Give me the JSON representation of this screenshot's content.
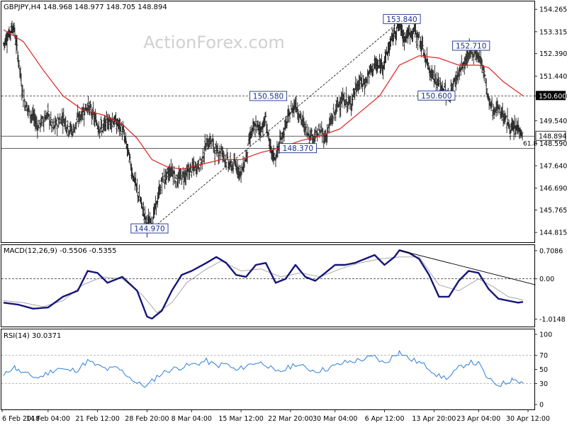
{
  "chart_data": [
    {
      "type": "candlestick",
      "panel": "price",
      "title": "GBPJPY,H4  148.968 148.977 148.705 148.894",
      "watermark": "ActionForex.com",
      "ylim": [
        144.4,
        154.6
      ],
      "y_ticks": [
        "154.265",
        "153.315",
        "152.390",
        "151.440",
        "150.600",
        "149.540",
        "148.590",
        "147.640",
        "146.690",
        "145.765",
        "144.815"
      ],
      "last_price": "148.894",
      "resistance_label": "150.600",
      "fib_label": "61.8",
      "annotations": [
        {
          "label": "153.840",
          "x": 80.5,
          "y": 153.84
        },
        {
          "label": "152.710",
          "x": 94.5,
          "y": 152.71
        },
        {
          "label": "150.580",
          "x": 53.5,
          "y": 150.58
        },
        {
          "label": "150.600",
          "x": 87.5,
          "y": 150.6
        },
        {
          "label": "148.370",
          "x": 59.5,
          "y": 148.37
        },
        {
          "label": "144.970",
          "x": 29.5,
          "y": 144.97
        }
      ],
      "horizontal_lines": [
        {
          "y": 150.6,
          "style": "dashed"
        },
        {
          "y": 148.894,
          "style": "solid"
        },
        {
          "y": 148.37,
          "style": "solid"
        }
      ],
      "trendline": {
        "x0": 30,
        "y0": 144.97,
        "x1": 80.5,
        "y1": 153.84
      },
      "close_path": [
        [
          0,
          152.8
        ],
        [
          1,
          153.2
        ],
        [
          2,
          153.6
        ],
        [
          3,
          152.2
        ],
        [
          4,
          150.5
        ],
        [
          5,
          150.0
        ],
        [
          6,
          149.7
        ],
        [
          7,
          149.3
        ],
        [
          8,
          149.6
        ],
        [
          9,
          149.8
        ],
        [
          10,
          149.2
        ],
        [
          11,
          149.5
        ],
        [
          12,
          149.7
        ],
        [
          13,
          149.3
        ],
        [
          14,
          149.1
        ],
        [
          15,
          149.6
        ],
        [
          16,
          149.9
        ],
        [
          17,
          150.2
        ],
        [
          18,
          149.8
        ],
        [
          19,
          149.4
        ],
        [
          20,
          149.2
        ],
        [
          21,
          149.5
        ],
        [
          22,
          149.6
        ],
        [
          23,
          149.4
        ],
        [
          24,
          149.2
        ],
        [
          25,
          148.4
        ],
        [
          26,
          147.4
        ],
        [
          27,
          146.6
        ],
        [
          28,
          145.9
        ],
        [
          29,
          145.2
        ],
        [
          30,
          145.3
        ],
        [
          31,
          146.1
        ],
        [
          32,
          147.0
        ],
        [
          33,
          147.2
        ],
        [
          34,
          147.5
        ],
        [
          35,
          147.0
        ],
        [
          36,
          147.2
        ],
        [
          37,
          147.3
        ],
        [
          38,
          147.5
        ],
        [
          39,
          147.6
        ],
        [
          40,
          147.8
        ],
        [
          41,
          148.6
        ],
        [
          42,
          148.7
        ],
        [
          43,
          148.2
        ],
        [
          44,
          148.3
        ],
        [
          45,
          147.9
        ],
        [
          46,
          147.6
        ],
        [
          47,
          147.7
        ],
        [
          48,
          147.3
        ],
        [
          49,
          148.0
        ],
        [
          50,
          149.0
        ],
        [
          51,
          149.3
        ],
        [
          52,
          149.2
        ],
        [
          53,
          149.6
        ],
        [
          54,
          148.2
        ],
        [
          55,
          148.0
        ],
        [
          56,
          148.7
        ],
        [
          57,
          149.3
        ],
        [
          58,
          149.9
        ],
        [
          59,
          150.3
        ],
        [
          60,
          149.7
        ],
        [
          61,
          149.2
        ],
        [
          62,
          149.0
        ],
        [
          63,
          148.9
        ],
        [
          64,
          149.1
        ],
        [
          65,
          148.8
        ],
        [
          66,
          149.4
        ],
        [
          67,
          149.9
        ],
        [
          68,
          150.4
        ],
        [
          69,
          150.4
        ],
        [
          70,
          150.2
        ],
        [
          71,
          150.8
        ],
        [
          72,
          151.2
        ],
        [
          73,
          151.1
        ],
        [
          74,
          151.6
        ],
        [
          75,
          151.9
        ],
        [
          76,
          151.8
        ],
        [
          77,
          152.1
        ],
        [
          78,
          152.7
        ],
        [
          79,
          153.3
        ],
        [
          80,
          153.6
        ],
        [
          81,
          153.1
        ],
        [
          82,
          153.2
        ],
        [
          83,
          153.4
        ],
        [
          84,
          153.0
        ],
        [
          85,
          152.4
        ],
        [
          86,
          151.8
        ],
        [
          87,
          151.4
        ],
        [
          88,
          151.0
        ],
        [
          89,
          150.9
        ],
        [
          90,
          150.5
        ],
        [
          91,
          151.1
        ],
        [
          92,
          151.6
        ],
        [
          93,
          151.9
        ],
        [
          94,
          152.3
        ],
        [
          95,
          152.5
        ],
        [
          96,
          152.3
        ],
        [
          97,
          151.8
        ],
        [
          98,
          150.4
        ],
        [
          99,
          150.0
        ],
        [
          100,
          150.1
        ],
        [
          101,
          149.8
        ],
        [
          102,
          149.4
        ],
        [
          103,
          149.1
        ],
        [
          104,
          149.3
        ],
        [
          105,
          148.9
        ]
      ],
      "ema_path": [
        [
          0,
          153.4
        ],
        [
          4,
          152.9
        ],
        [
          8,
          151.7
        ],
        [
          12,
          150.6
        ],
        [
          16,
          150.0
        ],
        [
          20,
          149.8
        ],
        [
          24,
          149.4
        ],
        [
          27,
          148.8
        ],
        [
          30,
          147.9
        ],
        [
          33,
          147.6
        ],
        [
          36,
          147.5
        ],
        [
          40,
          147.7
        ],
        [
          44,
          147.9
        ],
        [
          48,
          147.9
        ],
        [
          52,
          148.2
        ],
        [
          56,
          148.4
        ],
        [
          60,
          148.7
        ],
        [
          64,
          148.9
        ],
        [
          68,
          149.2
        ],
        [
          72,
          149.9
        ],
        [
          76,
          150.6
        ],
        [
          80,
          151.9
        ],
        [
          84,
          152.3
        ],
        [
          88,
          152.2
        ],
        [
          92,
          151.9
        ],
        [
          96,
          151.9
        ],
        [
          98,
          151.8
        ],
        [
          101,
          151.2
        ],
        [
          105,
          150.6
        ]
      ]
    },
    {
      "type": "line",
      "panel": "macd",
      "title": "MACD(12,26,9) -0.5506 -0.5355",
      "ylim": [
        -1.2,
        0.85
      ],
      "y_ticks": [
        "0.7086",
        "0.00",
        "-1.0148"
      ],
      "zero_label": "0.00",
      "series": [
        {
          "points": [
            [
              0,
              -0.6
            ],
            [
              3,
              -0.65
            ],
            [
              6,
              -0.75
            ],
            [
              9,
              -0.72
            ],
            [
              12,
              -0.45
            ],
            [
              15,
              -0.3
            ],
            [
              17,
              0.2
            ],
            [
              19,
              0.15
            ],
            [
              21,
              -0.1
            ],
            [
              24,
              0.05
            ],
            [
              27,
              -0.3
            ],
            [
              29,
              -0.95
            ],
            [
              30,
              -1.0
            ],
            [
              32,
              -0.8
            ],
            [
              34,
              -0.3
            ],
            [
              36,
              0.1
            ],
            [
              38,
              0.2
            ],
            [
              41,
              0.4
            ],
            [
              43,
              0.55
            ],
            [
              45,
              0.4
            ],
            [
              47,
              0.1
            ],
            [
              49,
              0.05
            ],
            [
              51,
              0.35
            ],
            [
              53,
              0.4
            ],
            [
              55,
              -0.1
            ],
            [
              57,
              0.0
            ],
            [
              59,
              0.35
            ],
            [
              61,
              0.05
            ],
            [
              63,
              -0.05
            ],
            [
              65,
              0.15
            ],
            [
              67,
              0.35
            ],
            [
              69,
              0.35
            ],
            [
              71,
              0.4
            ],
            [
              73,
              0.5
            ],
            [
              75,
              0.6
            ],
            [
              77,
              0.35
            ],
            [
              79,
              0.55
            ],
            [
              80,
              0.72
            ],
            [
              82,
              0.65
            ],
            [
              84,
              0.5
            ],
            [
              86,
              0.1
            ],
            [
              88,
              -0.45
            ],
            [
              90,
              -0.45
            ],
            [
              92,
              -0.05
            ],
            [
              94,
              0.2
            ],
            [
              96,
              0.15
            ],
            [
              98,
              -0.25
            ],
            [
              100,
              -0.5
            ],
            [
              102,
              -0.55
            ],
            [
              104,
              -0.6
            ],
            [
              105,
              -0.58
            ]
          ]
        },
        {
          "points": [
            [
              0,
              -0.55
            ],
            [
              4,
              -0.6
            ],
            [
              8,
              -0.7
            ],
            [
              12,
              -0.55
            ],
            [
              16,
              -0.15
            ],
            [
              20,
              0.05
            ],
            [
              24,
              0.0
            ],
            [
              28,
              -0.4
            ],
            [
              31,
              -0.85
            ],
            [
              34,
              -0.6
            ],
            [
              37,
              -0.1
            ],
            [
              41,
              0.25
            ],
            [
              44,
              0.45
            ],
            [
              48,
              0.2
            ],
            [
              52,
              0.25
            ],
            [
              56,
              0.05
            ],
            [
              60,
              0.15
            ],
            [
              64,
              0.05
            ],
            [
              68,
              0.25
            ],
            [
              72,
              0.4
            ],
            [
              76,
              0.5
            ],
            [
              80,
              0.55
            ],
            [
              84,
              0.55
            ],
            [
              88,
              -0.15
            ],
            [
              92,
              -0.3
            ],
            [
              96,
              0.0
            ],
            [
              99,
              -0.2
            ],
            [
              102,
              -0.45
            ],
            [
              105,
              -0.53
            ]
          ]
        }
      ],
      "trendline": {
        "x0": 80,
        "y0": 0.72,
        "x1": 107.5,
        "y1": -0.15
      }
    },
    {
      "type": "line",
      "panel": "rsi",
      "title": "RSI(14) 30.0371",
      "ylim": [
        0,
        100
      ],
      "y_ticks": [
        "100",
        "70",
        "50",
        "30",
        "0"
      ],
      "levels": [
        70,
        30
      ],
      "series": [
        {
          "points": [
            [
              0,
              40
            ],
            [
              2,
              55
            ],
            [
              3,
              48
            ],
            [
              5,
              42
            ],
            [
              7,
              38
            ],
            [
              9,
              45
            ],
            [
              11,
              52
            ],
            [
              13,
              48
            ],
            [
              15,
              50
            ],
            [
              17,
              62
            ],
            [
              19,
              55
            ],
            [
              21,
              50
            ],
            [
              23,
              52
            ],
            [
              25,
              42
            ],
            [
              27,
              30
            ],
            [
              29,
              26
            ],
            [
              31,
              40
            ],
            [
              33,
              48
            ],
            [
              35,
              52
            ],
            [
              37,
              55
            ],
            [
              39,
              58
            ],
            [
              41,
              62
            ],
            [
              43,
              55
            ],
            [
              45,
              58
            ],
            [
              47,
              48
            ],
            [
              49,
              55
            ],
            [
              51,
              60
            ],
            [
              53,
              58
            ],
            [
              55,
              45
            ],
            [
              57,
              50
            ],
            [
              59,
              58
            ],
            [
              61,
              52
            ],
            [
              63,
              48
            ],
            [
              65,
              50
            ],
            [
              67,
              55
            ],
            [
              69,
              60
            ],
            [
              71,
              62
            ],
            [
              73,
              65
            ],
            [
              75,
              68
            ],
            [
              77,
              58
            ],
            [
              79,
              70
            ],
            [
              80,
              75
            ],
            [
              82,
              65
            ],
            [
              84,
              60
            ],
            [
              86,
              52
            ],
            [
              88,
              40
            ],
            [
              90,
              38
            ],
            [
              92,
              52
            ],
            [
              94,
              60
            ],
            [
              96,
              58
            ],
            [
              98,
              35
            ],
            [
              100,
              28
            ],
            [
              102,
              32
            ],
            [
              103,
              38
            ],
            [
              104,
              32
            ],
            [
              105,
              30
            ]
          ]
        }
      ]
    },
    {
      "type": "time_axis",
      "ticks": [
        {
          "label": "6 Feb 2018",
          "x": 0
        },
        {
          "label": "14 Feb 04:00",
          "x": 9
        },
        {
          "label": "21 Feb 12:00",
          "x": 19
        },
        {
          "label": "28 Feb 20:00",
          "x": 29
        },
        {
          "label": "8 Mar 04:00",
          "x": 38
        },
        {
          "label": "15 Mar 12:00",
          "x": 48
        },
        {
          "label": "22 Mar 20:00",
          "x": 58
        },
        {
          "label": "30 Mar 04:00",
          "x": 67
        },
        {
          "label": "6 Apr 12:00",
          "x": 77
        },
        {
          "label": "13 Apr 20:00",
          "x": 87
        },
        {
          "label": "23 Apr 04:00",
          "x": 96
        },
        {
          "label": "30 Apr 12:00",
          "x": 106
        }
      ]
    }
  ]
}
